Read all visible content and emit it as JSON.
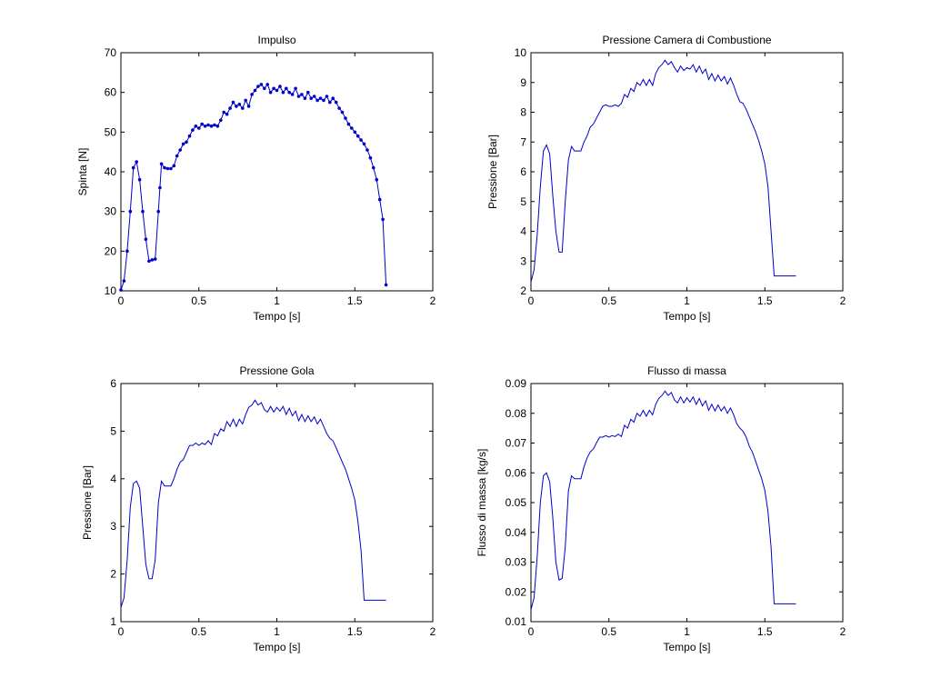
{
  "figure": {
    "background": "#ffffff",
    "line_color": "#0000cc"
  },
  "chart_data": [
    {
      "type": "line",
      "title": "Impulso",
      "xlabel": "Tempo [s]",
      "ylabel": "Spinta [N]",
      "xlim": [
        0,
        2
      ],
      "ylim": [
        10,
        70
      ],
      "xticks": [
        0,
        0.5,
        1,
        1.5,
        2
      ],
      "yticks": [
        10,
        20,
        30,
        40,
        50,
        60,
        70
      ],
      "xtick_labels": [
        "0",
        "0.5",
        "1",
        "1.5",
        "2"
      ],
      "ytick_labels": [
        "10",
        "20",
        "30",
        "40",
        "50",
        "60",
        "70"
      ],
      "markers": true,
      "series": [
        {
          "x": [
            0.0,
            0.02,
            0.04,
            0.06,
            0.08,
            0.1,
            0.12,
            0.14,
            0.16,
            0.18,
            0.2,
            0.22,
            0.24,
            0.25,
            0.26,
            0.28,
            0.3,
            0.32,
            0.34,
            0.36,
            0.38,
            0.4,
            0.42,
            0.44,
            0.46,
            0.48,
            0.5,
            0.52,
            0.54,
            0.56,
            0.58,
            0.6,
            0.62,
            0.64,
            0.66,
            0.68,
            0.7,
            0.72,
            0.74,
            0.76,
            0.78,
            0.8,
            0.82,
            0.84,
            0.86,
            0.88,
            0.9,
            0.92,
            0.94,
            0.96,
            0.98,
            1.0,
            1.02,
            1.04,
            1.06,
            1.08,
            1.1,
            1.12,
            1.14,
            1.16,
            1.18,
            1.2,
            1.22,
            1.24,
            1.26,
            1.28,
            1.3,
            1.32,
            1.34,
            1.36,
            1.38,
            1.4,
            1.42,
            1.44,
            1.46,
            1.48,
            1.5,
            1.52,
            1.54,
            1.56,
            1.58,
            1.6,
            1.62,
            1.64,
            1.66,
            1.68,
            1.7
          ],
          "y": [
            10.2,
            12.5,
            20.0,
            30.0,
            41.0,
            42.5,
            38.0,
            30.0,
            23.0,
            17.5,
            17.8,
            18.0,
            30.0,
            36.0,
            42.0,
            41.0,
            40.8,
            40.8,
            41.5,
            44.0,
            45.5,
            47.0,
            47.5,
            49.0,
            50.5,
            51.5,
            51.0,
            52.0,
            51.5,
            51.8,
            51.5,
            51.8,
            51.5,
            53.0,
            55.0,
            54.5,
            56.0,
            57.5,
            56.5,
            57.0,
            56.0,
            58.0,
            56.5,
            59.5,
            60.5,
            61.5,
            62.0,
            61.0,
            62.0,
            60.0,
            61.0,
            60.5,
            61.5,
            60.0,
            61.0,
            60.0,
            59.5,
            61.0,
            59.0,
            59.5,
            58.5,
            60.0,
            58.5,
            59.0,
            58.0,
            58.5,
            58.0,
            59.0,
            57.5,
            58.5,
            57.5,
            56.0,
            55.0,
            53.5,
            52.0,
            51.0,
            50.0,
            49.0,
            48.0,
            47.0,
            45.5,
            43.5,
            41.0,
            38.0,
            33.0,
            28.0,
            11.5
          ]
        }
      ]
    },
    {
      "type": "line",
      "title": "Pressione Camera di Combustione",
      "xlabel": "Tempo [s]",
      "ylabel": "Pressione [Bar]",
      "xlim": [
        0,
        2
      ],
      "ylim": [
        2,
        10
      ],
      "xticks": [
        0,
        0.5,
        1,
        1.5,
        2
      ],
      "yticks": [
        2,
        3,
        4,
        5,
        6,
        7,
        8,
        9,
        10
      ],
      "xtick_labels": [
        "0",
        "0.5",
        "1",
        "1.5",
        "2"
      ],
      "ytick_labels": [
        "2",
        "3",
        "4",
        "5",
        "6",
        "7",
        "8",
        "9",
        "10"
      ],
      "markers": false,
      "series": [
        {
          "x": [
            0.0,
            0.02,
            0.04,
            0.06,
            0.08,
            0.1,
            0.12,
            0.14,
            0.16,
            0.18,
            0.2,
            0.22,
            0.24,
            0.26,
            0.28,
            0.3,
            0.32,
            0.34,
            0.36,
            0.38,
            0.4,
            0.42,
            0.44,
            0.46,
            0.48,
            0.5,
            0.52,
            0.54,
            0.56,
            0.58,
            0.6,
            0.62,
            0.64,
            0.66,
            0.68,
            0.7,
            0.72,
            0.74,
            0.76,
            0.78,
            0.8,
            0.82,
            0.84,
            0.86,
            0.88,
            0.9,
            0.92,
            0.94,
            0.96,
            0.98,
            1.0,
            1.02,
            1.04,
            1.06,
            1.08,
            1.1,
            1.12,
            1.14,
            1.16,
            1.18,
            1.2,
            1.22,
            1.24,
            1.26,
            1.28,
            1.3,
            1.32,
            1.34,
            1.36,
            1.38,
            1.4,
            1.42,
            1.44,
            1.46,
            1.48,
            1.5,
            1.52,
            1.54,
            1.56,
            1.58,
            1.6,
            1.62,
            1.64,
            1.66,
            1.68,
            1.7
          ],
          "y": [
            2.3,
            2.7,
            3.9,
            5.5,
            6.7,
            6.9,
            6.6,
            5.2,
            4.0,
            3.3,
            3.3,
            5.0,
            6.4,
            6.85,
            6.7,
            6.7,
            6.7,
            7.0,
            7.2,
            7.5,
            7.6,
            7.8,
            8.0,
            8.2,
            8.25,
            8.2,
            8.2,
            8.25,
            8.2,
            8.3,
            8.6,
            8.5,
            8.8,
            8.7,
            9.0,
            8.9,
            9.1,
            8.9,
            9.1,
            8.9,
            9.3,
            9.5,
            9.6,
            9.75,
            9.6,
            9.7,
            9.5,
            9.35,
            9.55,
            9.4,
            9.5,
            9.45,
            9.6,
            9.35,
            9.55,
            9.3,
            9.45,
            9.1,
            9.3,
            9.05,
            9.25,
            9.05,
            9.2,
            8.95,
            9.15,
            8.9,
            8.6,
            8.35,
            8.3,
            8.1,
            7.85,
            7.6,
            7.35,
            7.05,
            6.7,
            6.25,
            5.5,
            4.0,
            2.5,
            2.5,
            2.5,
            2.5,
            2.5,
            2.5,
            2.5,
            2.5
          ]
        }
      ]
    },
    {
      "type": "line",
      "title": "Pressione Gola",
      "xlabel": "Tempo [s]",
      "ylabel": "Pressione [Bar]",
      "xlim": [
        0,
        2
      ],
      "ylim": [
        1,
        6
      ],
      "xticks": [
        0,
        0.5,
        1,
        1.5,
        2
      ],
      "yticks": [
        1,
        2,
        3,
        4,
        5,
        6
      ],
      "xtick_labels": [
        "0",
        "0.5",
        "1",
        "1.5",
        "2"
      ],
      "ytick_labels": [
        "1",
        "2",
        "3",
        "4",
        "5",
        "6"
      ],
      "markers": false,
      "series": [
        {
          "x": [
            0.0,
            0.02,
            0.04,
            0.06,
            0.08,
            0.1,
            0.12,
            0.14,
            0.16,
            0.18,
            0.2,
            0.22,
            0.24,
            0.26,
            0.28,
            0.3,
            0.32,
            0.34,
            0.36,
            0.38,
            0.4,
            0.42,
            0.44,
            0.46,
            0.48,
            0.5,
            0.52,
            0.54,
            0.56,
            0.58,
            0.6,
            0.62,
            0.64,
            0.66,
            0.68,
            0.7,
            0.72,
            0.74,
            0.76,
            0.78,
            0.8,
            0.82,
            0.84,
            0.86,
            0.88,
            0.9,
            0.92,
            0.94,
            0.96,
            0.98,
            1.0,
            1.02,
            1.04,
            1.06,
            1.08,
            1.1,
            1.12,
            1.14,
            1.16,
            1.18,
            1.2,
            1.22,
            1.24,
            1.26,
            1.28,
            1.3,
            1.32,
            1.34,
            1.36,
            1.38,
            1.4,
            1.42,
            1.44,
            1.46,
            1.48,
            1.5,
            1.52,
            1.54,
            1.56,
            1.58,
            1.6,
            1.62,
            1.64,
            1.66,
            1.68,
            1.7
          ],
          "y": [
            1.3,
            1.5,
            2.3,
            3.4,
            3.9,
            3.95,
            3.8,
            3.0,
            2.2,
            1.9,
            1.9,
            2.3,
            3.5,
            3.95,
            3.85,
            3.85,
            3.85,
            4.0,
            4.2,
            4.35,
            4.4,
            4.55,
            4.7,
            4.7,
            4.75,
            4.7,
            4.75,
            4.72,
            4.8,
            4.72,
            4.95,
            4.9,
            5.05,
            5.0,
            5.2,
            5.1,
            5.25,
            5.1,
            5.25,
            5.15,
            5.35,
            5.5,
            5.55,
            5.65,
            5.55,
            5.6,
            5.45,
            5.4,
            5.52,
            5.4,
            5.5,
            5.42,
            5.52,
            5.35,
            5.48,
            5.32,
            5.42,
            5.22,
            5.35,
            5.2,
            5.32,
            5.2,
            5.3,
            5.15,
            5.25,
            5.1,
            4.95,
            4.85,
            4.8,
            4.65,
            4.5,
            4.35,
            4.2,
            4.0,
            3.8,
            3.55,
            3.1,
            2.5,
            1.45,
            1.45,
            1.45,
            1.45,
            1.45,
            1.45,
            1.45,
            1.45
          ]
        }
      ]
    },
    {
      "type": "line",
      "title": "Flusso di massa",
      "xlabel": "Tempo [s]",
      "ylabel": "Flusso di massa [kg/s]",
      "xlim": [
        0,
        2
      ],
      "ylim": [
        0.01,
        0.09
      ],
      "xticks": [
        0,
        0.5,
        1,
        1.5,
        2
      ],
      "yticks": [
        0.01,
        0.02,
        0.03,
        0.04,
        0.05,
        0.06,
        0.07,
        0.08,
        0.09
      ],
      "xtick_labels": [
        "0",
        "0.5",
        "1",
        "1.5",
        "2"
      ],
      "ytick_labels": [
        "0.01",
        "0.02",
        "0.03",
        "0.04",
        "0.05",
        "0.06",
        "0.07",
        "0.08",
        "0.09"
      ],
      "markers": false,
      "series": [
        {
          "x": [
            0.0,
            0.02,
            0.04,
            0.06,
            0.08,
            0.1,
            0.12,
            0.14,
            0.16,
            0.18,
            0.2,
            0.22,
            0.24,
            0.26,
            0.28,
            0.3,
            0.32,
            0.34,
            0.36,
            0.38,
            0.4,
            0.42,
            0.44,
            0.46,
            0.48,
            0.5,
            0.52,
            0.54,
            0.56,
            0.58,
            0.6,
            0.62,
            0.64,
            0.66,
            0.68,
            0.7,
            0.72,
            0.74,
            0.76,
            0.78,
            0.8,
            0.82,
            0.84,
            0.86,
            0.88,
            0.9,
            0.92,
            0.94,
            0.96,
            0.98,
            1.0,
            1.02,
            1.04,
            1.06,
            1.08,
            1.1,
            1.12,
            1.14,
            1.16,
            1.18,
            1.2,
            1.22,
            1.24,
            1.26,
            1.28,
            1.3,
            1.32,
            1.34,
            1.36,
            1.38,
            1.4,
            1.42,
            1.44,
            1.46,
            1.48,
            1.5,
            1.52,
            1.54,
            1.56,
            1.58,
            1.6,
            1.62,
            1.64,
            1.66,
            1.68,
            1.7
          ],
          "y": [
            0.014,
            0.018,
            0.032,
            0.05,
            0.059,
            0.06,
            0.057,
            0.045,
            0.03,
            0.024,
            0.0245,
            0.035,
            0.054,
            0.059,
            0.058,
            0.058,
            0.058,
            0.062,
            0.065,
            0.067,
            0.068,
            0.07,
            0.072,
            0.072,
            0.0725,
            0.072,
            0.0725,
            0.0722,
            0.073,
            0.0722,
            0.076,
            0.075,
            0.078,
            0.077,
            0.08,
            0.079,
            0.081,
            0.079,
            0.081,
            0.0795,
            0.083,
            0.085,
            0.086,
            0.0875,
            0.086,
            0.087,
            0.0845,
            0.0835,
            0.0855,
            0.0835,
            0.0852,
            0.0838,
            0.0855,
            0.083,
            0.085,
            0.0825,
            0.0842,
            0.081,
            0.083,
            0.0808,
            0.0828,
            0.0808,
            0.0822,
            0.08,
            0.0818,
            0.0795,
            0.0765,
            0.075,
            0.074,
            0.072,
            0.069,
            0.067,
            0.064,
            0.061,
            0.058,
            0.054,
            0.047,
            0.035,
            0.016,
            0.016,
            0.016,
            0.016,
            0.016,
            0.016,
            0.016,
            0.016
          ]
        }
      ]
    }
  ]
}
